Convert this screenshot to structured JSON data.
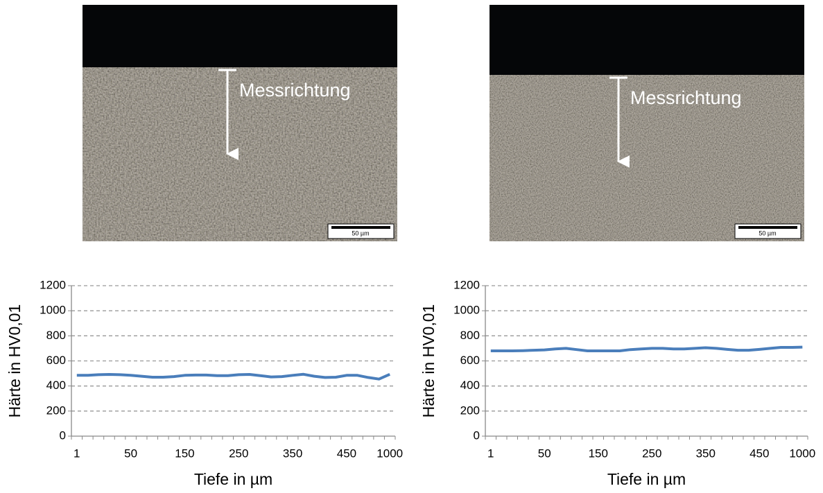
{
  "chart_data": [
    {
      "type": "line",
      "image_labels": {
        "direction": "Messrichtung",
        "scale_bar": "50 µm"
      },
      "x_label": "Tiefe in µm",
      "y_label": "Härte in HV0,01",
      "categories": [
        "1",
        null,
        null,
        null,
        null,
        "50",
        null,
        null,
        null,
        null,
        "150",
        null,
        null,
        null,
        null,
        "250",
        null,
        null,
        null,
        null,
        "350",
        null,
        null,
        null,
        null,
        "450",
        null,
        null,
        null,
        "1000"
      ],
      "values": [
        485,
        485,
        490,
        492,
        490,
        485,
        478,
        470,
        470,
        475,
        485,
        487,
        487,
        482,
        482,
        490,
        492,
        483,
        472,
        475,
        485,
        493,
        478,
        468,
        470,
        485,
        485,
        468,
        455,
        493
      ],
      "color": "#4a7ebb",
      "ylim": [
        0,
        1200
      ],
      "yticks": [
        0,
        200,
        400,
        600,
        800,
        1000,
        1200
      ],
      "grid": true
    },
    {
      "type": "line",
      "image_labels": {
        "direction": "Messrichtung",
        "scale_bar": "50 µm"
      },
      "x_label": "Tiefe in µm",
      "y_label": "Härte in HV0,01",
      "categories": [
        "1",
        null,
        null,
        null,
        null,
        "50",
        null,
        null,
        null,
        null,
        "150",
        null,
        null,
        null,
        null,
        "250",
        null,
        null,
        null,
        null,
        "350",
        null,
        null,
        null,
        null,
        "450",
        null,
        null,
        null,
        "1000"
      ],
      "values": [
        680,
        680,
        680,
        682,
        685,
        688,
        695,
        700,
        690,
        680,
        680,
        680,
        680,
        690,
        695,
        700,
        700,
        695,
        695,
        700,
        705,
        700,
        692,
        685,
        685,
        692,
        700,
        708,
        708,
        710
      ],
      "color": "#4a7ebb",
      "ylim": [
        0,
        1200
      ],
      "yticks": [
        0,
        200,
        400,
        600,
        800,
        1000,
        1200
      ],
      "grid": true
    }
  ]
}
